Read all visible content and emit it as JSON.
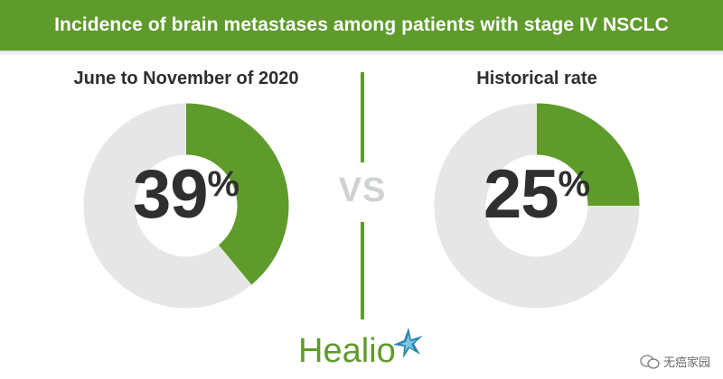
{
  "header": {
    "title": "Incidence of brain metastases among patients with stage IV NSCLC"
  },
  "colors": {
    "accent": "#5e9b2b",
    "track": "#e6e6e6",
    "text": "#2f2f2f",
    "vs": "#cfd2d4"
  },
  "chart_data": {
    "type": "pie",
    "title": "Incidence of brain metastases among patients with stage IV NSCLC",
    "comparison_label": "VS",
    "series": [
      {
        "name": "June to November of 2020",
        "value": 39,
        "value_text": "39",
        "unit": "%"
      },
      {
        "name": "Historical rate",
        "value": 25,
        "value_text": "25",
        "unit": "%"
      }
    ]
  },
  "logo": {
    "text": "Healio"
  },
  "watermark": {
    "text": "无癌家园"
  }
}
